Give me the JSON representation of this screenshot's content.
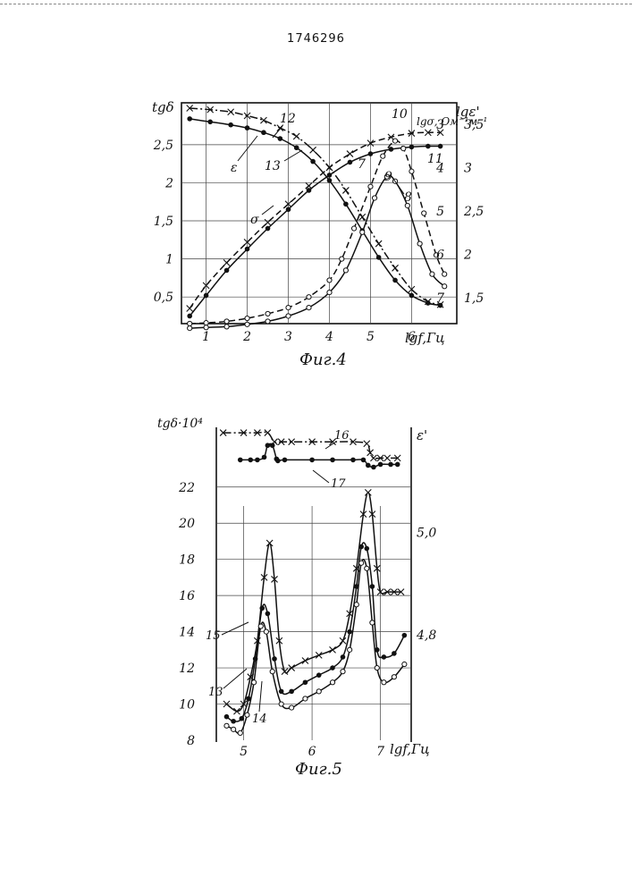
{
  "document": {
    "patent_number": "1746296"
  },
  "chart_data": [
    {
      "type": "line",
      "caption": "Фиг.4",
      "xlabel": "lgf,Гц",
      "x_ticks": [
        "1",
        "2",
        "3",
        "4",
        "5",
        "6"
      ],
      "xlim": [
        0.4,
        7.1
      ],
      "left_axis": {
        "label": "tgδ",
        "ticks": [
          "0,5",
          "1",
          "1,5",
          "2",
          "2,5"
        ],
        "ylim": [
          0.15,
          3.05
        ]
      },
      "right_axis_1": {
        "label": "lgσ, Ом⁻¹м⁻¹",
        "ticks": [
          "3",
          "4",
          "5",
          "6",
          "7"
        ],
        "ylim": [
          7.6,
          2.5
        ]
      },
      "right_axis_2": {
        "label": "lgε'",
        "ticks": [
          "3,5",
          "3",
          "2,5",
          "2",
          "1,5"
        ],
        "ylim": [
          1.2,
          3.75
        ]
      },
      "grid": true,
      "annotations": [
        "ε",
        "σ",
        "7",
        "8",
        "9",
        "10",
        "11",
        "12",
        "13"
      ],
      "series": [
        {
          "marker": "x",
          "style": "dash-dot",
          "points": [
            [
              0.6,
              2.98
            ],
            [
              1.1,
              2.96
            ],
            [
              1.6,
              2.93
            ],
            [
              2.0,
              2.88
            ],
            [
              2.4,
              2.82
            ],
            [
              2.8,
              2.72
            ],
            [
              3.2,
              2.61
            ],
            [
              3.6,
              2.43
            ],
            [
              4.0,
              2.2
            ],
            [
              4.4,
              1.9
            ],
            [
              4.8,
              1.55
            ],
            [
              5.2,
              1.2
            ],
            [
              5.6,
              0.88
            ],
            [
              6.0,
              0.6
            ],
            [
              6.4,
              0.44
            ],
            [
              6.7,
              0.4
            ]
          ]
        },
        {
          "marker": "dot",
          "style": "solid",
          "points": [
            [
              0.6,
              2.84
            ],
            [
              1.1,
              2.8
            ],
            [
              1.6,
              2.76
            ],
            [
              2.0,
              2.72
            ],
            [
              2.4,
              2.66
            ],
            [
              2.8,
              2.58
            ],
            [
              3.2,
              2.46
            ],
            [
              3.6,
              2.28
            ],
            [
              4.0,
              2.03
            ],
            [
              4.4,
              1.72
            ],
            [
              4.8,
              1.37
            ],
            [
              5.2,
              1.02
            ],
            [
              5.6,
              0.72
            ],
            [
              6.0,
              0.52
            ],
            [
              6.4,
              0.42
            ],
            [
              6.7,
              0.39
            ]
          ]
        },
        {
          "marker": "x",
          "style": "dashed",
          "points": [
            [
              0.6,
              0.35
            ],
            [
              1.0,
              0.65
            ],
            [
              1.5,
              0.95
            ],
            [
              2.0,
              1.22
            ],
            [
              2.5,
              1.48
            ],
            [
              3.0,
              1.72
            ],
            [
              3.5,
              1.96
            ],
            [
              4.0,
              2.2
            ],
            [
              4.5,
              2.38
            ],
            [
              5.0,
              2.52
            ],
            [
              5.5,
              2.6
            ],
            [
              6.0,
              2.65
            ],
            [
              6.4,
              2.66
            ],
            [
              6.7,
              2.66
            ]
          ]
        },
        {
          "marker": "dot",
          "style": "solid",
          "points": [
            [
              0.6,
              0.25
            ],
            [
              1.0,
              0.52
            ],
            [
              1.5,
              0.85
            ],
            [
              2.0,
              1.13
            ],
            [
              2.5,
              1.4
            ],
            [
              3.0,
              1.65
            ],
            [
              3.5,
              1.9
            ],
            [
              4.0,
              2.1
            ],
            [
              4.5,
              2.27
            ],
            [
              5.0,
              2.38
            ],
            [
              5.5,
              2.44
            ],
            [
              6.0,
              2.47
            ],
            [
              6.4,
              2.48
            ],
            [
              6.7,
              2.48
            ]
          ]
        },
        {
          "marker": "o",
          "style": "dashed",
          "points": [
            [
              0.6,
              0.15
            ],
            [
              1.0,
              0.16
            ],
            [
              1.5,
              0.18
            ],
            [
              2.0,
              0.22
            ],
            [
              2.5,
              0.28
            ],
            [
              3.0,
              0.36
            ],
            [
              3.5,
              0.5
            ],
            [
              4.0,
              0.72
            ],
            [
              4.3,
              1.0
            ],
            [
              4.6,
              1.4
            ],
            [
              5.0,
              1.95
            ],
            [
              5.3,
              2.35
            ],
            [
              5.6,
              2.55
            ],
            [
              5.8,
              2.45
            ],
            [
              6.0,
              2.15
            ],
            [
              6.3,
              1.6
            ],
            [
              6.6,
              1.05
            ],
            [
              6.8,
              0.8
            ]
          ]
        },
        {
          "marker": "o",
          "style": "solid",
          "points": [
            [
              0.6,
              0.09
            ],
            [
              1.0,
              0.1
            ],
            [
              1.5,
              0.11
            ],
            [
              2.0,
              0.14
            ],
            [
              2.5,
              0.18
            ],
            [
              3.0,
              0.25
            ],
            [
              3.5,
              0.36
            ],
            [
              4.0,
              0.56
            ],
            [
              4.4,
              0.85
            ],
            [
              4.8,
              1.35
            ],
            [
              5.1,
              1.8
            ],
            [
              5.4,
              2.08
            ],
            [
              5.6,
              2.02
            ],
            [
              5.9,
              1.7
            ],
            [
              6.2,
              1.2
            ],
            [
              6.5,
              0.8
            ],
            [
              6.8,
              0.64
            ]
          ]
        }
      ]
    },
    {
      "type": "line",
      "caption": "Фиг.5",
      "xlabel": "lgf,Гц",
      "x_ticks": [
        "5",
        "6",
        "7"
      ],
      "xlim": [
        4.6,
        7.45
      ],
      "left_axis": {
        "label": "tgδ·10⁴",
        "ticks": [
          "8",
          "10",
          "12",
          "14",
          "16",
          "18",
          "20",
          "22"
        ],
        "ylim": [
          8,
          25.3
        ]
      },
      "right_axis": {
        "label": "ε'",
        "ticks": [
          "4,8",
          "5,0"
        ],
        "ylim": [
          4.593,
          5.206
        ]
      },
      "grid": true,
      "annotations": [
        "13",
        "14",
        "15",
        "16",
        "17"
      ],
      "series": [
        {
          "marker": "x",
          "style": "dash-dot",
          "points": [
            [
              4.7,
              25.0
            ],
            [
              5.0,
              25.0
            ],
            [
              5.2,
              25.0
            ],
            [
              5.35,
              25.0
            ],
            [
              5.45,
              24.5
            ],
            [
              5.55,
              24.5
            ],
            [
              5.7,
              24.5
            ],
            [
              6.0,
              24.5
            ],
            [
              6.3,
              24.5
            ],
            [
              6.6,
              24.5
            ],
            [
              6.8,
              24.4
            ],
            [
              6.85,
              23.9
            ],
            [
              6.9,
              23.6
            ],
            [
              7.0,
              23.6
            ],
            [
              7.1,
              23.6
            ],
            [
              7.25,
              23.6
            ]
          ]
        },
        {
          "marker": "dot",
          "style": "solid",
          "points": [
            [
              4.95,
              23.5
            ],
            [
              5.1,
              23.5
            ],
            [
              5.2,
              23.5
            ],
            [
              5.3,
              23.65
            ],
            [
              5.35,
              24.3
            ],
            [
              5.42,
              24.3
            ],
            [
              5.48,
              23.55
            ],
            [
              5.5,
              23.45
            ],
            [
              5.6,
              23.5
            ],
            [
              6.0,
              23.5
            ],
            [
              6.3,
              23.5
            ],
            [
              6.6,
              23.5
            ],
            [
              6.75,
              23.5
            ],
            [
              6.82,
              23.2
            ],
            [
              6.9,
              23.1
            ],
            [
              7.0,
              23.25
            ],
            [
              7.15,
              23.25
            ],
            [
              7.25,
              23.25
            ]
          ]
        },
        {
          "marker": "x",
          "style": "solid",
          "points": [
            [
              4.75,
              10.0
            ],
            [
              4.9,
              9.6
            ],
            [
              5.0,
              10.0
            ],
            [
              5.1,
              11.5
            ],
            [
              5.2,
              13.5
            ],
            [
              5.3,
              17.0
            ],
            [
              5.38,
              18.9
            ],
            [
              5.45,
              16.9
            ],
            [
              5.52,
              13.5
            ],
            [
              5.6,
              11.8
            ],
            [
              5.7,
              12.0
            ],
            [
              5.9,
              12.4
            ],
            [
              6.1,
              12.7
            ],
            [
              6.3,
              13.0
            ],
            [
              6.45,
              13.5
            ],
            [
              6.55,
              15.0
            ],
            [
              6.65,
              17.5
            ],
            [
              6.75,
              20.5
            ],
            [
              6.82,
              21.7
            ],
            [
              6.88,
              20.5
            ],
            [
              6.95,
              17.5
            ],
            [
              7.0,
              16.2
            ],
            [
              7.1,
              16.2
            ],
            [
              7.2,
              16.2
            ],
            [
              7.3,
              16.2
            ]
          ]
        },
        {
          "marker": "dot",
          "style": "solid",
          "points": [
            [
              4.75,
              9.3
            ],
            [
              4.85,
              9.05
            ],
            [
              4.97,
              9.2
            ],
            [
              5.07,
              10.3
            ],
            [
              5.17,
              12.5
            ],
            [
              5.27,
              15.3
            ],
            [
              5.35,
              15.0
            ],
            [
              5.45,
              12.5
            ],
            [
              5.55,
              10.7
            ],
            [
              5.7,
              10.7
            ],
            [
              5.9,
              11.2
            ],
            [
              6.1,
              11.6
            ],
            [
              6.3,
              12.0
            ],
            [
              6.45,
              12.6
            ],
            [
              6.55,
              14.0
            ],
            [
              6.65,
              16.5
            ],
            [
              6.72,
              18.7
            ],
            [
              6.8,
              18.6
            ],
            [
              6.88,
              16.5
            ],
            [
              6.95,
              13.0
            ],
            [
              7.05,
              12.6
            ],
            [
              7.2,
              12.8
            ],
            [
              7.35,
              13.8
            ]
          ]
        },
        {
          "marker": "o",
          "style": "solid",
          "points": [
            [
              4.75,
              8.8
            ],
            [
              4.85,
              8.6
            ],
            [
              4.95,
              8.4
            ],
            [
              5.05,
              9.4
            ],
            [
              5.15,
              11.2
            ],
            [
              5.25,
              14.3
            ],
            [
              5.33,
              14.0
            ],
            [
              5.42,
              11.8
            ],
            [
              5.55,
              10.0
            ],
            [
              5.7,
              9.8
            ],
            [
              5.9,
              10.3
            ],
            [
              6.1,
              10.7
            ],
            [
              6.3,
              11.2
            ],
            [
              6.45,
              11.8
            ],
            [
              6.55,
              13.0
            ],
            [
              6.65,
              15.5
            ],
            [
              6.72,
              17.8
            ],
            [
              6.8,
              17.5
            ],
            [
              6.88,
              14.5
            ],
            [
              6.95,
              12.0
            ],
            [
              7.05,
              11.2
            ],
            [
              7.2,
              11.5
            ],
            [
              7.35,
              12.2
            ]
          ]
        }
      ]
    }
  ]
}
